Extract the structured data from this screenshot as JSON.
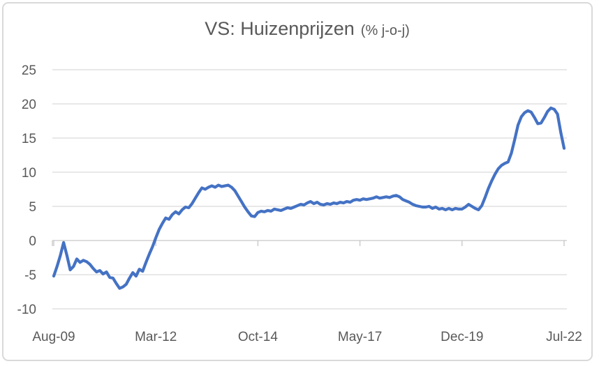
{
  "chart_data": {
    "type": "line",
    "title": "VS: Huizenprijzen",
    "title_suffix": "(% j-o-j)",
    "x_tick_labels": [
      "Aug-09",
      "Mar-12",
      "Oct-14",
      "May-17",
      "Dec-19",
      "Jul-22"
    ],
    "x_tick_month_indices": [
      0,
      31,
      62,
      93,
      124,
      155
    ],
    "y_ticks": [
      25,
      20,
      15,
      10,
      5,
      0,
      -5,
      -10
    ],
    "ylim": [
      -10,
      25
    ],
    "grid": true,
    "legend": false,
    "series": [
      {
        "start_label": "Aug-09",
        "end_label": "Jul-22",
        "frequency": "monthly",
        "color": "#4472C4",
        "values": [
          -5.2,
          -3.8,
          -2.2,
          -0.3,
          -2.2,
          -4.3,
          -3.8,
          -2.7,
          -3.2,
          -2.9,
          -3.1,
          -3.5,
          -4.1,
          -4.6,
          -4.4,
          -4.9,
          -4.6,
          -5.4,
          -5.5,
          -6.3,
          -7.0,
          -6.8,
          -6.4,
          -5.5,
          -4.7,
          -5.2,
          -4.2,
          -4.5,
          -3.2,
          -2.0,
          -0.9,
          0.4,
          1.6,
          2.5,
          3.3,
          3.1,
          3.8,
          4.2,
          3.9,
          4.5,
          4.9,
          4.8,
          5.4,
          6.2,
          7.0,
          7.7,
          7.5,
          7.8,
          8.0,
          7.8,
          8.1,
          7.9,
          8.0,
          8.1,
          7.8,
          7.3,
          6.5,
          5.7,
          4.9,
          4.2,
          3.6,
          3.5,
          4.1,
          4.3,
          4.2,
          4.4,
          4.3,
          4.6,
          4.5,
          4.4,
          4.6,
          4.8,
          4.7,
          4.9,
          5.1,
          5.3,
          5.2,
          5.5,
          5.7,
          5.4,
          5.6,
          5.3,
          5.2,
          5.4,
          5.3,
          5.5,
          5.4,
          5.6,
          5.5,
          5.7,
          5.6,
          5.9,
          6.0,
          5.9,
          6.1,
          6.0,
          6.1,
          6.2,
          6.4,
          6.2,
          6.3,
          6.4,
          6.3,
          6.5,
          6.6,
          6.4,
          6.0,
          5.8,
          5.6,
          5.3,
          5.1,
          5.0,
          4.9,
          4.9,
          5.0,
          4.7,
          4.9,
          4.6,
          4.7,
          4.5,
          4.7,
          4.5,
          4.7,
          4.6,
          4.6,
          4.9,
          5.3,
          5.0,
          4.7,
          4.5,
          5.1,
          6.3,
          7.6,
          8.7,
          9.7,
          10.5,
          11.0,
          11.3,
          11.5,
          12.8,
          14.8,
          16.9,
          18.1,
          18.7,
          19.0,
          18.8,
          18.0,
          17.1,
          17.2,
          18.0,
          18.9,
          19.4,
          19.2,
          18.5,
          15.8,
          13.5
        ]
      }
    ]
  },
  "colors": {
    "accent": "#4472C4",
    "grid": "#D9D9D9",
    "axis": "#C6C6C6",
    "text": "#595959",
    "border": "#D9D9D9",
    "background": "#FFFFFF"
  }
}
